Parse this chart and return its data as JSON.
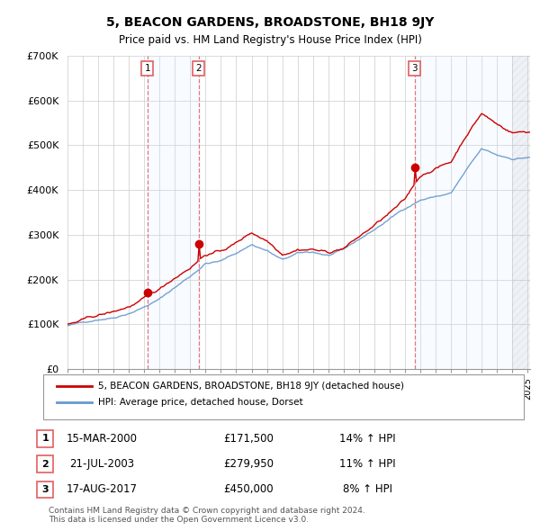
{
  "title": "5, BEACON GARDENS, BROADSTONE, BH18 9JY",
  "subtitle": "Price paid vs. HM Land Registry's House Price Index (HPI)",
  "title_fontsize": 10,
  "subtitle_fontsize": 8.5,
  "ylim": [
    0,
    700000
  ],
  "yticks": [
    0,
    100000,
    200000,
    300000,
    400000,
    500000,
    600000,
    700000
  ],
  "ytick_labels": [
    "£0",
    "£100K",
    "£200K",
    "£300K",
    "£400K",
    "£500K",
    "£600K",
    "£700K"
  ],
  "xlim_start": 1995.0,
  "xlim_end": 2025.17,
  "property_color": "#cc0000",
  "hpi_color": "#6699cc",
  "fill_color": "#ddeeff",
  "vline_color": "#e06060",
  "sale_marker_color": "#cc0000",
  "sale_dates_num": [
    2000.204,
    2003.549,
    2017.632
  ],
  "sale_prices": [
    171500,
    279950,
    450000
  ],
  "sale_labels": [
    "1",
    "2",
    "3"
  ],
  "legend_property": "5, BEACON GARDENS, BROADSTONE, BH18 9JY (detached house)",
  "legend_hpi": "HPI: Average price, detached house, Dorset",
  "table_rows": [
    [
      "1",
      "15-MAR-2000",
      "£171,500",
      "14% ↑ HPI"
    ],
    [
      "2",
      "21-JUL-2003",
      "£279,950",
      "11% ↑ HPI"
    ],
    [
      "3",
      "17-AUG-2017",
      "£450,000",
      "8% ↑ HPI"
    ]
  ],
  "footnote": "Contains HM Land Registry data © Crown copyright and database right 2024.\nThis data is licensed under the Open Government Licence v3.0.",
  "bg_color": "#f8f9ff"
}
